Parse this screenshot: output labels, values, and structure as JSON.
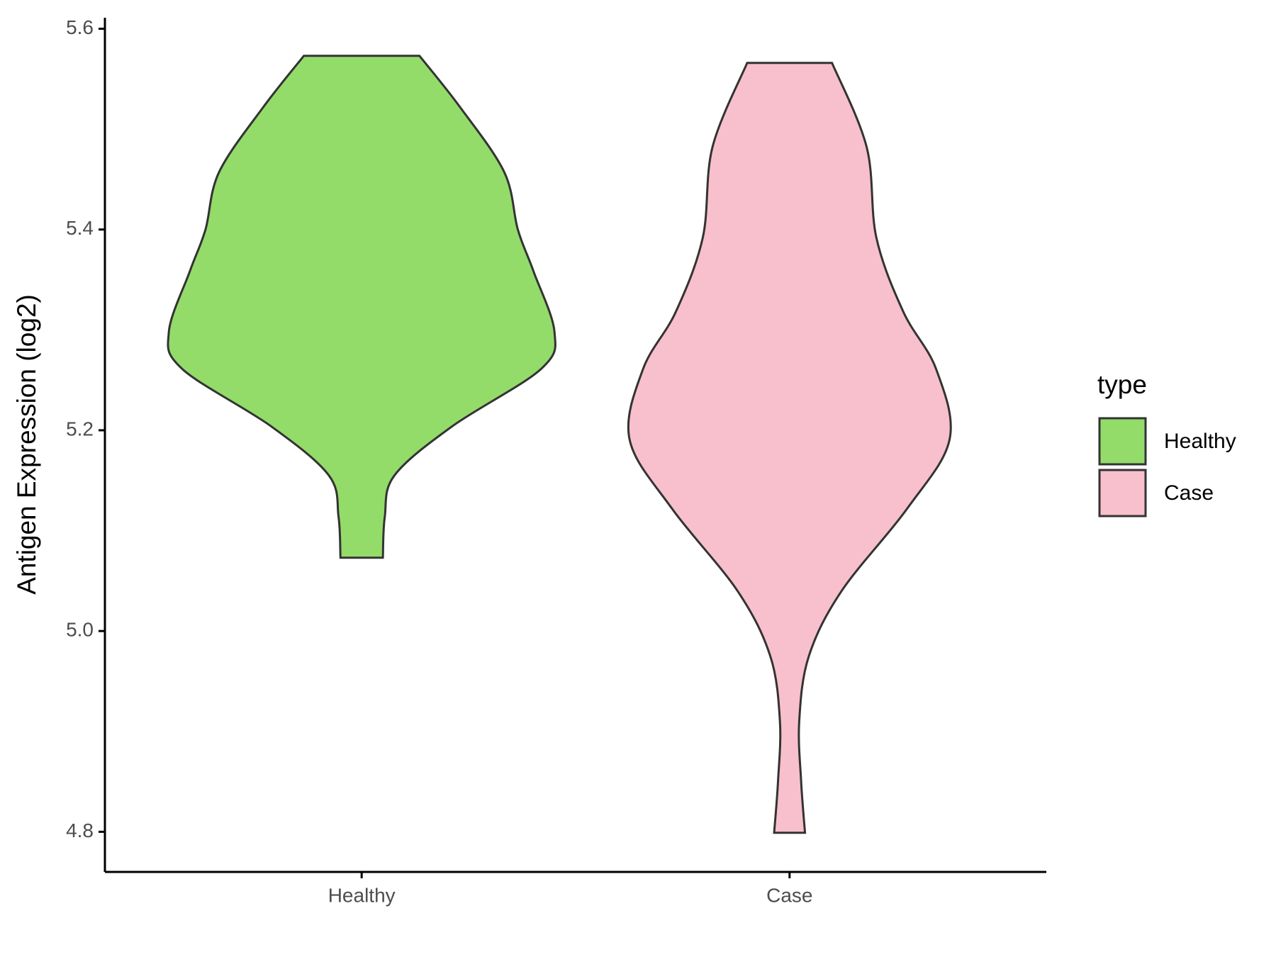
{
  "chart_data": {
    "type": "violin",
    "y_label": "Antigen Expression (log2)",
    "categories": [
      "Healthy",
      "Case"
    ],
    "series": [
      {
        "name": "Healthy",
        "color": "#93dc6a",
        "y": [
          5.573,
          5.522,
          5.457,
          5.4,
          5.359,
          5.298,
          5.261,
          5.204,
          5.155,
          5.114,
          5.073
        ],
        "widths": [
          0.3,
          0.51,
          0.74,
          0.81,
          0.89,
          1.0,
          0.93,
          0.47,
          0.17,
          0.12,
          0.11
        ]
      },
      {
        "name": "Case",
        "color": "#f8c0cc",
        "y": [
          5.566,
          5.482,
          5.392,
          5.318,
          5.261,
          5.191,
          5.122,
          5.04,
          4.975,
          4.91,
          4.85,
          4.799
        ],
        "widths": [
          0.22,
          0.4,
          0.45,
          0.59,
          0.76,
          0.83,
          0.61,
          0.27,
          0.1,
          0.05,
          0.06,
          0.08
        ]
      }
    ],
    "ylim": [
      4.76,
      5.611
    ],
    "yticks": [
      {
        "value": 4.8,
        "label": "4.8"
      },
      {
        "value": 5.0,
        "label": "5.0"
      },
      {
        "value": 5.2,
        "label": "5.2"
      },
      {
        "value": 5.4,
        "label": "5.4"
      },
      {
        "value": 5.6,
        "label": "5.6"
      }
    ],
    "legend_title": "type",
    "legend_position": "right"
  }
}
